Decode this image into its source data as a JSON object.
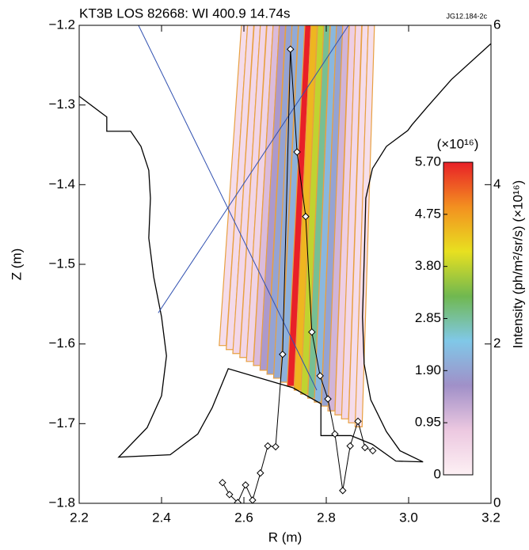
{
  "chart_data": {
    "type": "line",
    "title": "KT3B LOS 82668: WI 400.9 14.74s",
    "tag": "JG12.184-2c",
    "x_label": "R (m)",
    "y_label": "Z (m)",
    "y2_label": "Intensity (ph/m²/sr/s) (×10¹⁶)",
    "xlim": [
      2.2,
      3.2
    ],
    "xticks": [
      2.2,
      2.4,
      2.6,
      2.8,
      {
        "value": 3,
        "label": "3.0"
      },
      3.2
    ],
    "ylim": [
      -1.8,
      -1.2
    ],
    "yticks": [
      {
        "value": -1.8,
        "label": "−1.8"
      },
      {
        "value": -1.7,
        "label": "−1.7"
      },
      {
        "value": -1.6,
        "label": "−1.6"
      },
      {
        "value": -1.5,
        "label": "−1.5"
      },
      {
        "value": -1.4,
        "label": "−1.4"
      },
      {
        "value": -1.3,
        "label": "−1.3"
      },
      {
        "value": -1.2,
        "label": "−1.2"
      }
    ],
    "y2lim": [
      0,
      6
    ],
    "y2ticks": [
      0,
      2,
      4,
      6
    ],
    "series": [
      {
        "name": "Intensity",
        "axis": "y2",
        "color": "#000000",
        "x": [
          2.548,
          2.565,
          2.585,
          2.604,
          2.621,
          2.64,
          2.658,
          2.677,
          2.694,
          2.713,
          2.729,
          2.75,
          2.765,
          2.785,
          2.804,
          2.821,
          2.84,
          2.858,
          2.877,
          2.894,
          2.913
        ],
        "values": [
          0.26,
          0.11,
          0.01,
          0.23,
          0.04,
          0.38,
          0.72,
          0.71,
          1.87,
          5.7,
          4.41,
          3.6,
          2.15,
          1.6,
          1.31,
          0.87,
          0.16,
          0.72,
          1.03,
          0.7,
          0.66
        ]
      }
    ],
    "wall": {
      "color": "#000000",
      "r": [
        2.2,
        2.267,
        2.267,
        2.325,
        2.35,
        2.369,
        2.373,
        2.369,
        2.381,
        2.4,
        2.412,
        2.4,
        2.365,
        2.296,
        2.421,
        2.488,
        2.523,
        2.562,
        2.719,
        2.787,
        2.787,
        2.86,
        2.912,
        2.969,
        3.035,
        2.979,
        2.946,
        2.908,
        2.892,
        2.888,
        2.892,
        2.896,
        2.912,
        2.946,
        2.998,
        3.008,
        3.046,
        3.104,
        3.2
      ],
      "z": [
        -1.289,
        -1.315,
        -1.333,
        -1.333,
        -1.352,
        -1.382,
        -1.417,
        -1.467,
        -1.516,
        -1.566,
        -1.615,
        -1.665,
        -1.705,
        -1.742,
        -1.739,
        -1.713,
        -1.68,
        -1.631,
        -1.655,
        -1.675,
        -1.715,
        -1.715,
        -1.726,
        -1.747,
        -1.748,
        -1.734,
        -1.71,
        -1.67,
        -1.625,
        -1.566,
        -1.496,
        -1.417,
        -1.38,
        -1.352,
        -1.332,
        -1.325,
        -1.302,
        -1.268,
        -1.223
      ]
    },
    "sightlines": [
      {
        "color": "#3050b0",
        "r": [
          2.344,
          2.777
        ],
        "z": [
          -1.2,
          -1.658
        ]
      },
      {
        "color": "#3050b0",
        "r": [
          2.392,
          2.854
        ],
        "z": [
          -1.561,
          -1.2
        ]
      }
    ],
    "chords": {
      "outline": "#e8a040",
      "r_top": [
        2.594,
        2.609,
        2.625,
        2.64,
        2.656,
        2.671,
        2.686,
        2.702,
        2.717,
        2.733,
        2.748,
        2.763,
        2.779,
        2.794,
        2.81,
        2.825,
        2.84,
        2.856,
        2.871,
        2.887,
        2.902
      ],
      "r_bottom": [
        2.54,
        2.557,
        2.573,
        2.59,
        2.606,
        2.623,
        2.639,
        2.656,
        2.672,
        2.689,
        2.705,
        2.722,
        2.738,
        2.755,
        2.771,
        2.788,
        2.804,
        2.821,
        2.837,
        2.854,
        2.87
      ],
      "z_bottom": [
        -1.602,
        -1.607,
        -1.612,
        -1.617,
        -1.622,
        -1.627,
        -1.633,
        -1.638,
        -1.643,
        -1.648,
        -1.653,
        -1.658,
        -1.663,
        -1.668,
        -1.673,
        -1.678,
        -1.684,
        -1.689,
        -1.694,
        -1.699,
        -1.704
      ],
      "intensity": [
        0.4,
        0.45,
        0.5,
        0.55,
        0.6,
        1.0,
        1.5,
        1.9,
        2.0,
        2.1,
        5.7,
        4.5,
        3.8,
        2.9,
        2.2,
        1.9,
        1.1,
        0.7,
        0.5,
        0.4,
        0.35
      ]
    },
    "colorbar_label": "(×10¹⁶)",
    "colorbar_lim": [
      0,
      5.7
    ],
    "colorbar_ticks": [
      0,
      0.95,
      {
        "value": 1.9,
        "label": "1.90"
      },
      2.85,
      {
        "value": 3.8,
        "label": "3.80"
      },
      4.75,
      {
        "value": 5.7,
        "label": "5.70"
      }
    ],
    "colormap": [
      "#fdf0f4",
      "#ecc8e0",
      "#a090c8",
      "#80c8e8",
      "#70b850",
      "#e8e020",
      "#f39020",
      "#e82028"
    ]
  }
}
